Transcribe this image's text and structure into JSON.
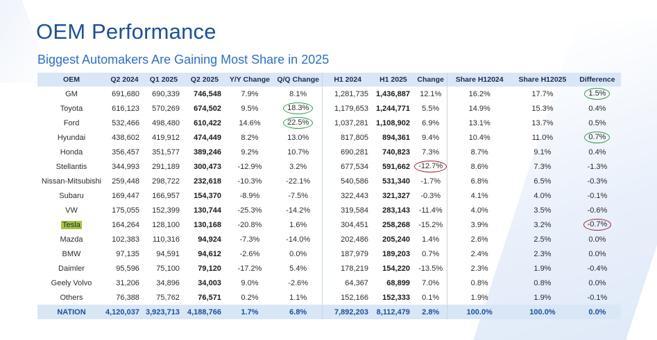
{
  "title": "OEM Performance",
  "subtitle": "Biggest Automakers Are Gaining Most Share in 2025",
  "colors": {
    "title": "#1a50a0",
    "subtitle": "#2a6fd0",
    "header_bg": "#d9e6f6",
    "circle_green": "#2e9b4a",
    "circle_red": "#a11d2e",
    "tesla_highlight": "#a7c33a"
  },
  "headers": [
    "OEM",
    "Q2 2024",
    "Q1 2025",
    "Q2 2025",
    "Y/Y Change",
    "Q/Q Change",
    "H1 2024",
    "H1 2025",
    "Change",
    "Share H12024",
    "Share H12025",
    "Difference"
  ],
  "rows": [
    [
      "GM",
      "691,680",
      "690,339",
      "746,548",
      "7.9%",
      "8.1%",
      "1,281,735",
      "1,436,887",
      "12.1%",
      "16.2%",
      "17.7%",
      "1.5%"
    ],
    [
      "Toyota",
      "616,123",
      "570,269",
      "674,502",
      "9.5%",
      "18.3%",
      "1,179,653",
      "1,244,771",
      "5.5%",
      "14.9%",
      "15.3%",
      "0.4%"
    ],
    [
      "Ford",
      "532,466",
      "498,480",
      "610,422",
      "14.6%",
      "22.5%",
      "1,037,281",
      "1,108,902",
      "6.9%",
      "13.1%",
      "13.7%",
      "0.5%"
    ],
    [
      "Hyundai",
      "438,602",
      "419,912",
      "474,449",
      "8.2%",
      "13.0%",
      "817,805",
      "894,361",
      "9.4%",
      "10.4%",
      "11.0%",
      "0.7%"
    ],
    [
      "Honda",
      "356,457",
      "351,577",
      "389,246",
      "9.2%",
      "10.7%",
      "690,281",
      "740,823",
      "7.3%",
      "8.7%",
      "9.1%",
      "0.4%"
    ],
    [
      "Stellantis",
      "344,993",
      "291,189",
      "300,473",
      "-12.9%",
      "3.2%",
      "677,534",
      "591,662",
      "-12.7%",
      "8.6%",
      "7.3%",
      "-1.3%"
    ],
    [
      "Nissan-Mitsubishi",
      "259,448",
      "298,722",
      "232,618",
      "-10.3%",
      "-22.1%",
      "540,586",
      "531,340",
      "-1.7%",
      "6.8%",
      "6.5%",
      "-0.3%"
    ],
    [
      "Subaru",
      "169,447",
      "166,957",
      "154,370",
      "-8.9%",
      "-7.5%",
      "322,443",
      "321,327",
      "-0.3%",
      "4.1%",
      "4.0%",
      "-0.1%"
    ],
    [
      "VW",
      "175,055",
      "152,399",
      "130,744",
      "-25.3%",
      "-14.2%",
      "319,584",
      "283,143",
      "-11.4%",
      "4.0%",
      "3.5%",
      "-0.6%"
    ],
    [
      "Tesla",
      "164,264",
      "128,100",
      "130,168",
      "-20.8%",
      "1.6%",
      "304,451",
      "258,268",
      "-15.2%",
      "3.9%",
      "3.2%",
      "-0.7%"
    ],
    [
      "Mazda",
      "102,383",
      "110,316",
      "94,924",
      "-7.3%",
      "-14.0%",
      "202,486",
      "205,240",
      "1.4%",
      "2.6%",
      "2.5%",
      "0.0%"
    ],
    [
      "BMW",
      "97,135",
      "94,591",
      "94,612",
      "-2.6%",
      "0.0%",
      "187,979",
      "189,203",
      "0.7%",
      "2.4%",
      "2.3%",
      "0.0%"
    ],
    [
      "Daimler",
      "95,596",
      "75,100",
      "79,120",
      "-17.2%",
      "5.4%",
      "178,219",
      "154,220",
      "-13.5%",
      "2.3%",
      "1.9%",
      "-0.4%"
    ],
    [
      "Geely Volvo",
      "31,206",
      "34,896",
      "34,003",
      "9.0%",
      "-2.6%",
      "64,367",
      "68,899",
      "7.0%",
      "0.8%",
      "0.8%",
      "0.0%"
    ],
    [
      "Others",
      "76,388",
      "75,762",
      "76,571",
      "0.2%",
      "1.1%",
      "152,166",
      "152,333",
      "0.1%",
      "1.9%",
      "1.9%",
      "-0.1%"
    ]
  ],
  "total": [
    "NATION",
    "4,120,037",
    "3,923,713",
    "4,188,766",
    "1.7%",
    "6.8%",
    "7,892,203",
    "8,112,479",
    "2.8%",
    "100.0%",
    "100.0%",
    "0.0%"
  ]
}
